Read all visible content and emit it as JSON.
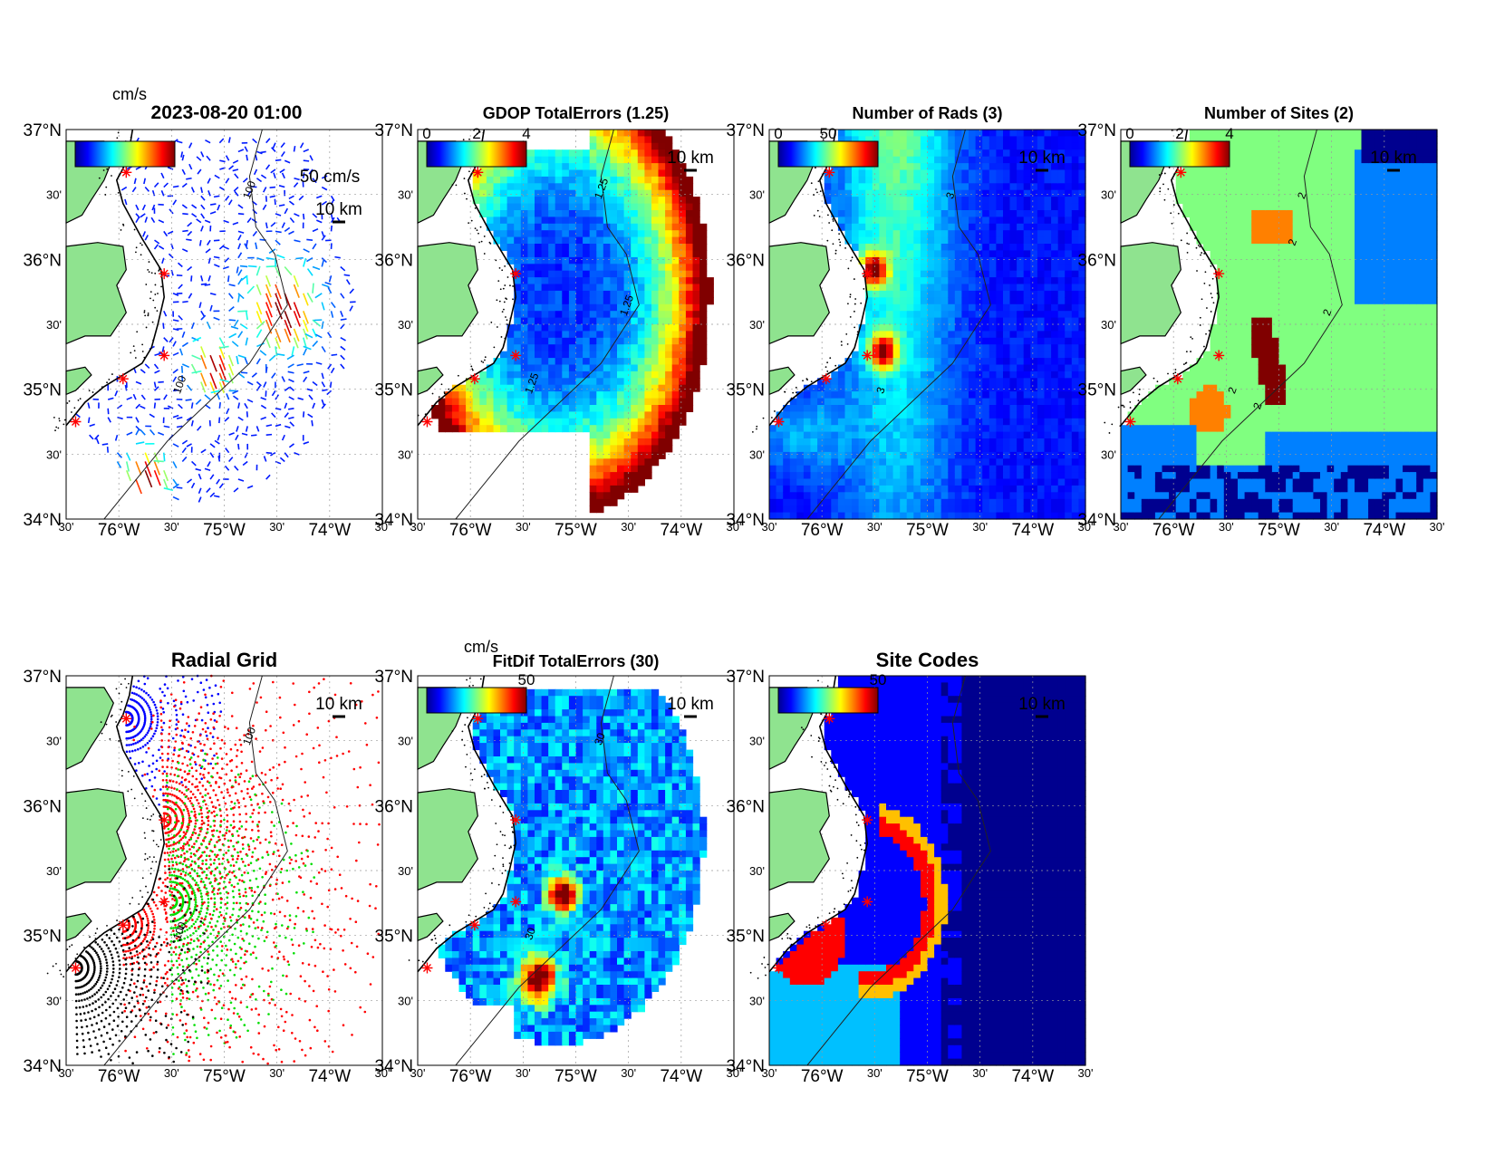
{
  "figure": {
    "timestamp": "2023-08-20 01:00"
  },
  "axis_labels": {
    "lat": [
      "37°N",
      "30'",
      "36°N",
      "30'",
      "35°N",
      "30'",
      "34°N"
    ],
    "lon": [
      "30'",
      "76°W",
      "30'",
      "75°W",
      "30'",
      "74°W",
      "30'"
    ]
  },
  "panels": [
    {
      "id": "currents",
      "title": "",
      "units": "cm/s",
      "colorbar": {
        "ticks": [],
        "colormap": "jet"
      },
      "vector_scale_label": "50 cm/s",
      "scale_bar": "10 km",
      "contour_labels": [
        "100",
        "100"
      ],
      "kind": "vectors"
    },
    {
      "id": "gdop",
      "title": "GDOP TotalErrors (1.25)",
      "units": "",
      "colorbar": {
        "ticks": [
          "0",
          "2",
          "4"
        ],
        "colormap": "jet"
      },
      "scale_bar": "10 km",
      "contour_labels": [
        "1.25",
        "1.25",
        "1.25"
      ],
      "kind": "heatmap"
    },
    {
      "id": "rads",
      "title": "Number of Rads (3)",
      "units": "",
      "colorbar": {
        "ticks": [
          "0",
          "50"
        ],
        "colormap": "jet"
      },
      "scale_bar": "10 km",
      "contour_labels": [
        "3",
        "3"
      ],
      "kind": "heatmap"
    },
    {
      "id": "sites",
      "title": "Number of Sites (2)",
      "units": "",
      "colorbar": {
        "ticks": [
          "0",
          "2",
          "4"
        ],
        "colormap": "jet"
      },
      "scale_bar": "10 km",
      "contour_labels": [
        "2",
        "2",
        "2",
        "2",
        "2"
      ],
      "kind": "categorical"
    },
    {
      "id": "radgrid",
      "title": "Radial Grid",
      "units": "",
      "colorbar": null,
      "scale_bar": "10 km",
      "contour_labels": [
        "100",
        "100"
      ],
      "kind": "dots"
    },
    {
      "id": "fitdif",
      "title": "FitDif TotalErrors (30)",
      "units": "cm/s",
      "colorbar": {
        "ticks": [
          "50"
        ],
        "colormap": "jet"
      },
      "scale_bar": "10 km",
      "contour_labels": [
        "30",
        "30"
      ],
      "kind": "heatmap"
    },
    {
      "id": "sitecodes",
      "title": "Site Codes",
      "units": "",
      "colorbar": {
        "ticks": [
          "50"
        ],
        "colormap": "jet"
      },
      "scale_bar": "10 km",
      "contour_labels": [],
      "kind": "categorical"
    }
  ],
  "colors": {
    "land": "#8fe38f",
    "coast": "#000000",
    "site_marker": "#ff0000",
    "grid": "#9a9a9a"
  }
}
